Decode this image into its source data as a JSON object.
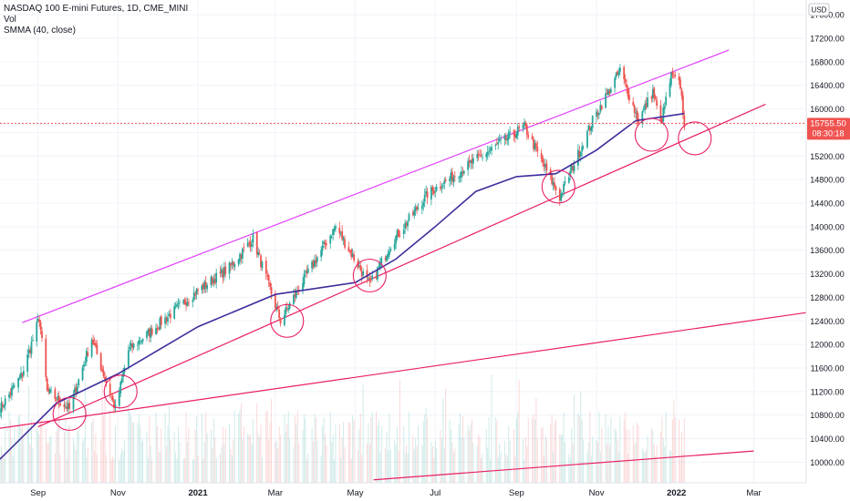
{
  "legend": {
    "title": "NASDAQ 100 E-mini Futures, 1D, CME_MINI",
    "vol": "Vol",
    "smma": "SMMA (40, close)"
  },
  "price_axis": {
    "currency": "USD",
    "ticks": [
      "17600.00",
      "17200.00",
      "16800.00",
      "16400.00",
      "16000.00",
      "15600.00",
      "15200.00",
      "14800.00",
      "14400.00",
      "14000.00",
      "13600.00",
      "13200.00",
      "12800.00",
      "12400.00",
      "12000.00",
      "11600.00",
      "11200.00",
      "10800.00",
      "10400.00",
      "10000.00"
    ],
    "last_price": "15755.50",
    "countdown": "08:30:18"
  },
  "time_axis": {
    "labels": [
      "Sep",
      "Nov",
      "2021",
      "Mar",
      "May",
      "Jul",
      "Sep",
      "Nov",
      "2022",
      "Mar"
    ]
  },
  "colors": {
    "up": "#26a69a",
    "down": "#ef5350",
    "smma": "#3f2d9c",
    "channel_top": "#e040fb",
    "trend": "#e91e63",
    "circles": "#e91e63",
    "price_label": "#ef5350"
  },
  "chart_data": {
    "type": "candlestick",
    "title": "NASDAQ 100 E-mini Futures, 1D, CME_MINI",
    "ylim": [
      9650,
      17850
    ],
    "x_range": [
      "2020-08-03",
      "2022-04-10"
    ],
    "close_path": [
      [
        "2020-08-03",
        10900
      ],
      [
        "2020-08-20",
        11500
      ],
      [
        "2020-09-02",
        12450
      ],
      [
        "2020-09-08",
        11200
      ],
      [
        "2020-09-25",
        10900
      ],
      [
        "2020-10-12",
        12100
      ],
      [
        "2020-10-30",
        10900
      ],
      [
        "2020-11-09",
        11900
      ],
      [
        "2020-11-30",
        12300
      ],
      [
        "2020-12-31",
        12900
      ],
      [
        "2021-01-25",
        13300
      ],
      [
        "2021-02-12",
        13800
      ],
      [
        "2021-03-05",
        12400
      ],
      [
        "2021-03-20",
        13000
      ],
      [
        "2021-04-16",
        14000
      ],
      [
        "2021-05-12",
        13000
      ],
      [
        "2021-05-28",
        13700
      ],
      [
        "2021-06-25",
        14550
      ],
      [
        "2021-07-30",
        15100
      ],
      [
        "2021-09-07",
        15700
      ],
      [
        "2021-10-04",
        14500
      ],
      [
        "2021-10-29",
        15800
      ],
      [
        "2021-11-19",
        16650
      ],
      [
        "2021-12-03",
        15800
      ],
      [
        "2021-12-14",
        16300
      ],
      [
        "2021-12-20",
        15750
      ],
      [
        "2021-12-28",
        16550
      ],
      [
        "2022-01-04",
        16400
      ],
      [
        "2022-01-07",
        15755
      ]
    ],
    "smma_path": [
      [
        "2020-08-03",
        10050
      ],
      [
        "2020-09-15",
        11000
      ],
      [
        "2020-11-01",
        11500
      ],
      [
        "2021-01-01",
        12300
      ],
      [
        "2021-03-01",
        12850
      ],
      [
        "2021-05-01",
        13050
      ],
      [
        "2021-06-01",
        13450
      ],
      [
        "2021-07-01",
        14000
      ],
      [
        "2021-08-01",
        14600
      ],
      [
        "2021-09-01",
        14850
      ],
      [
        "2021-10-01",
        14900
      ],
      [
        "2021-11-01",
        15300
      ],
      [
        "2021-12-01",
        15800
      ],
      [
        "2022-01-07",
        15920
      ]
    ],
    "lines": [
      {
        "p1": [
          "2020-08-20",
          12370
        ],
        "p2": [
          "2022-02-10",
          17000
        ]
      },
      {
        "p1": [
          "2020-09-01",
          10600
        ],
        "p2": [
          "2022-03-10",
          16080
        ]
      },
      {
        "p1": [
          "2020-08-01",
          10570
        ],
        "p2": [
          "2022-04-10",
          12540
        ]
      },
      {
        "p1": [
          "2021-05-15",
          9700
        ],
        "p2": [
          "2022-03-01",
          10190
        ]
      }
    ],
    "circles": [
      [
        "2020-09-25",
        10820
      ],
      [
        "2020-11-03",
        11200
      ],
      [
        "2021-03-10",
        12400
      ],
      [
        "2021-05-12",
        13170
      ],
      [
        "2021-10-03",
        14680
      ],
      [
        "2021-12-13",
        15560
      ],
      [
        "2022-01-15",
        15500
      ]
    ],
    "last_price": 15755.5
  }
}
